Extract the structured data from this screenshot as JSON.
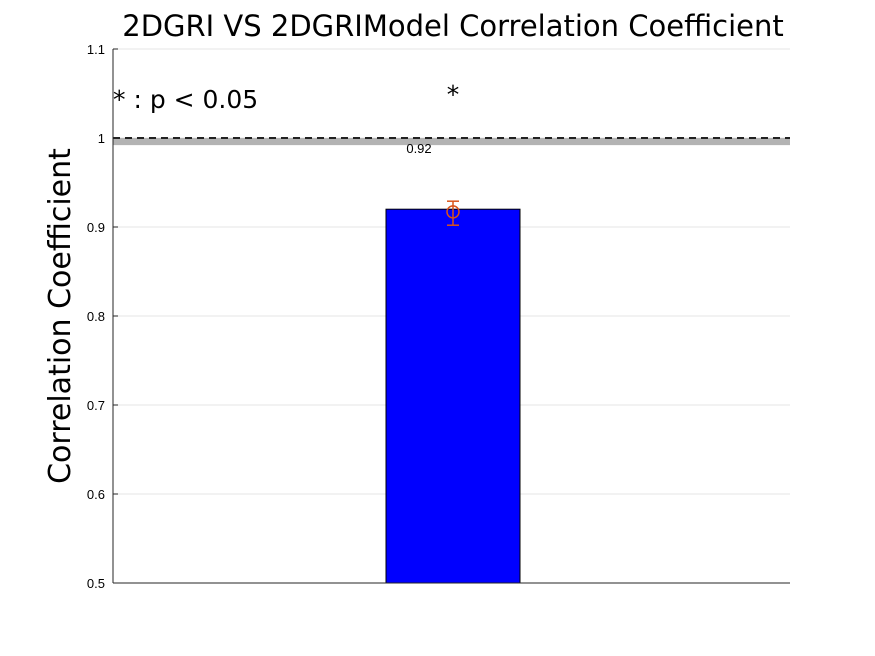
{
  "chart_data": {
    "type": "bar",
    "title": "2DGRI VS 2DGRIModel Correlation Coefficient",
    "xlabel": "",
    "ylabel": "Correlation Coefficient",
    "ylim": [
      0.5,
      1.1
    ],
    "yticks": [
      "0.5",
      "0.6",
      "0.7",
      "0.8",
      "0.9",
      "1",
      "1.1"
    ],
    "grid": true,
    "series": [
      {
        "values": [
          0.92
        ],
        "color": "#0000ff",
        "value_labels": [
          "0.92"
        ]
      }
    ],
    "errorbar": {
      "center": 0.917,
      "lower": 0.902,
      "upper": 0.929,
      "color": "#d95319"
    },
    "reference_line": {
      "value": 1.0,
      "band": [
        0.992,
        1.0
      ],
      "line_color": "#222222",
      "band_color": "#b3b3b3"
    },
    "significance_marker": "*",
    "annotation": "* : p < 0.05"
  }
}
